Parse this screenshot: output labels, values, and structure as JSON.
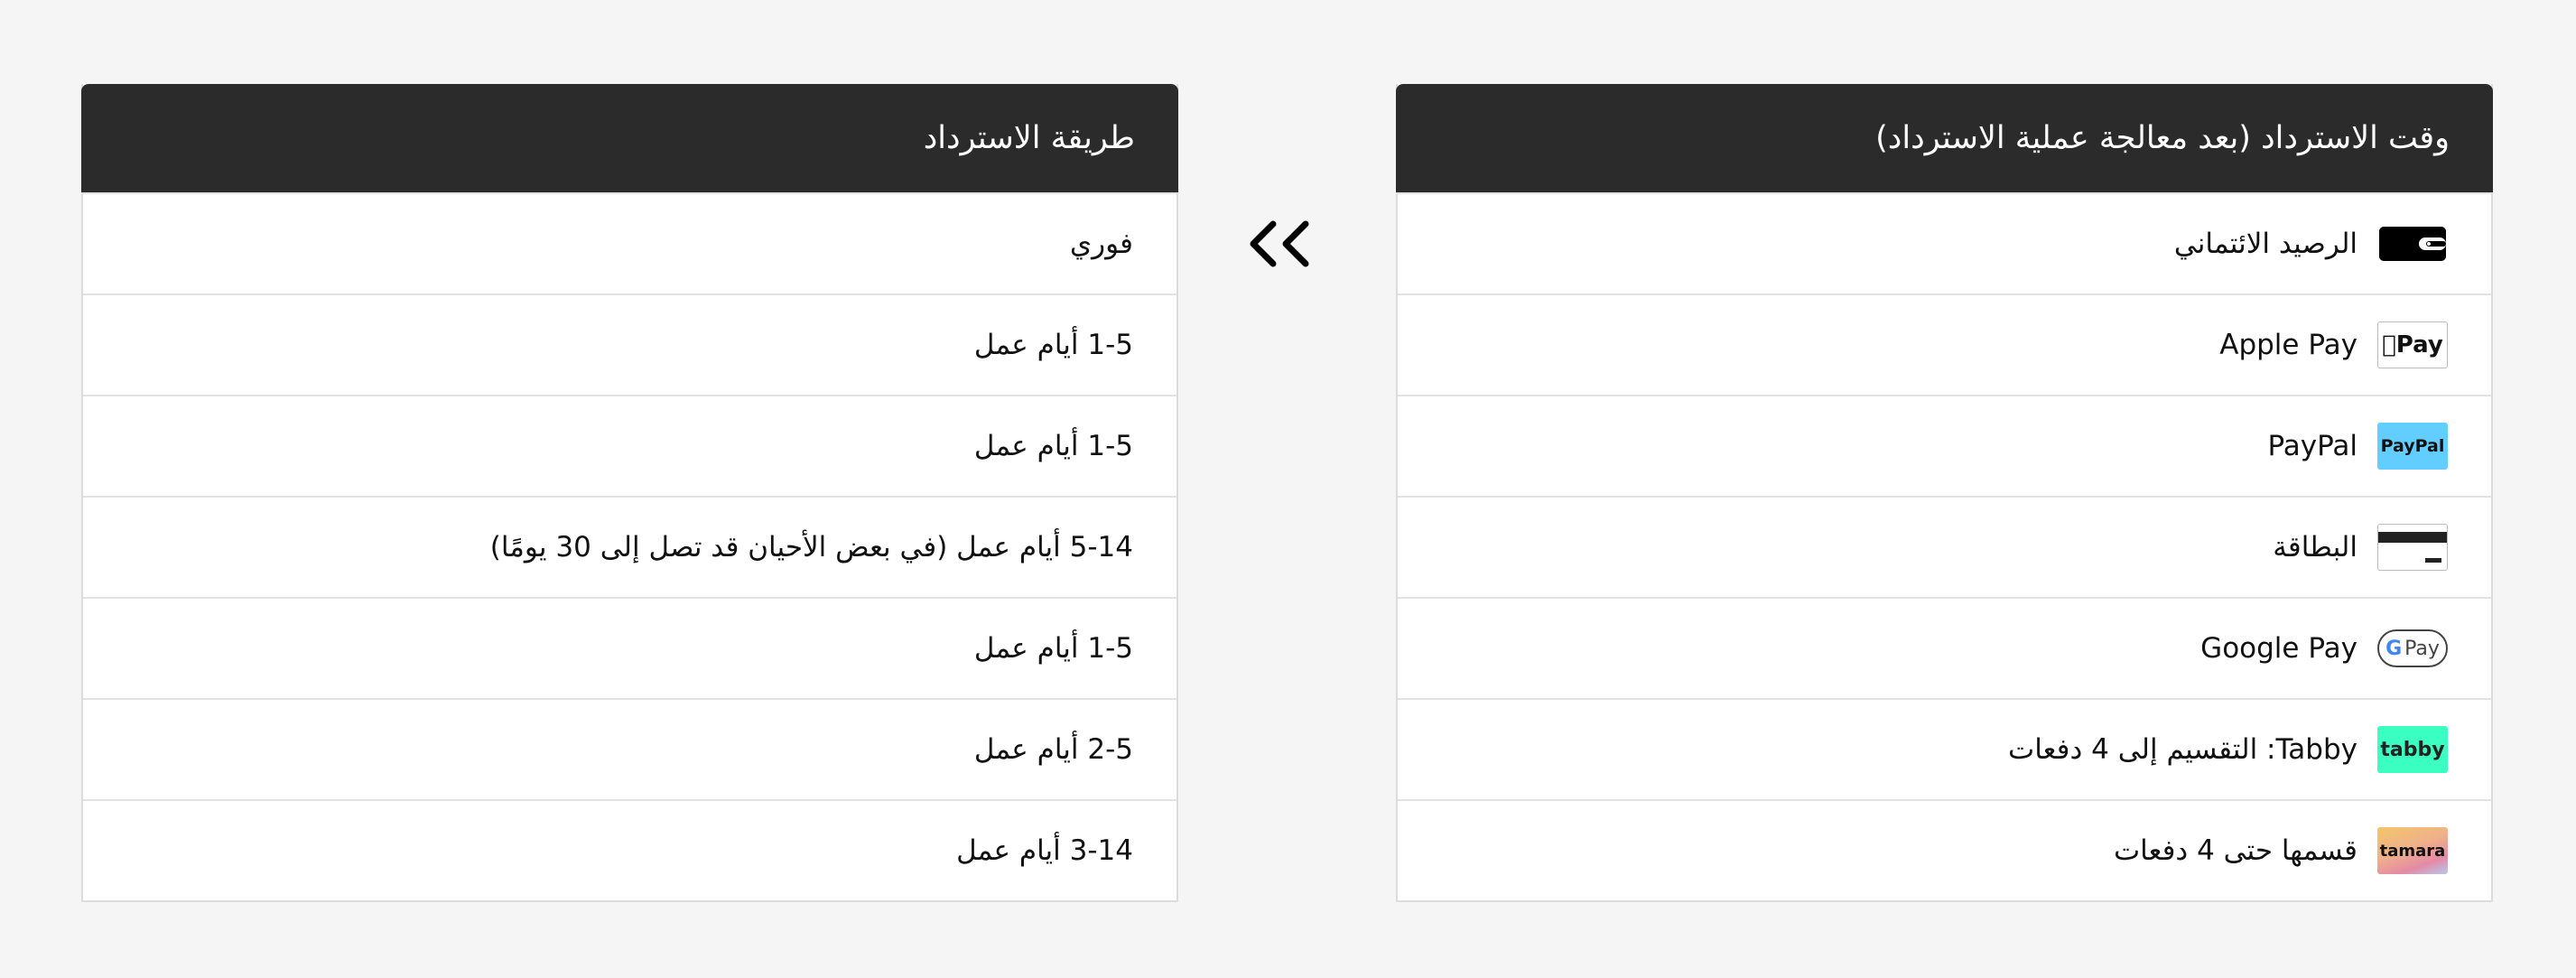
{
  "right_table": {
    "header": "وقت الاسترداد (بعد معالجة عملية الاسترداد)",
    "rows": [
      {
        "label": "الرصيد الائتماني",
        "icon": "wallet-icon"
      },
      {
        "label": "Apple Pay",
        "icon": "apple-pay-logo",
        "logo_text": "Pay"
      },
      {
        "label": "PayPal",
        "icon": "paypal-logo",
        "logo_text": "PayPal",
        "color": "#62cdff"
      },
      {
        "label": "البطاقة",
        "icon": "card-icon"
      },
      {
        "label": "Google Pay",
        "icon": "google-pay-logo",
        "logo_text": "Pay"
      },
      {
        "label": "Tabby: التقسيم إلى 4 دفعات",
        "icon": "tabby-logo",
        "logo_text": "tabby",
        "color": "#3bffc1"
      },
      {
        "label": "قسمها حتى 4 دفعات",
        "icon": "tamara-logo",
        "logo_text": "tamara"
      }
    ]
  },
  "left_table": {
    "header": "طريقة الاسترداد",
    "rows": [
      "فوري",
      "1-5 أيام عمل",
      "1-5 أيام عمل",
      "5-14 أيام عمل (في بعض الأحيان قد تصل إلى 30 يومًا)",
      "1-5 أيام عمل",
      "2-5 أيام عمل",
      "3-14 أيام عمل"
    ]
  },
  "arrow_icon": "double-chevron-left-icon"
}
